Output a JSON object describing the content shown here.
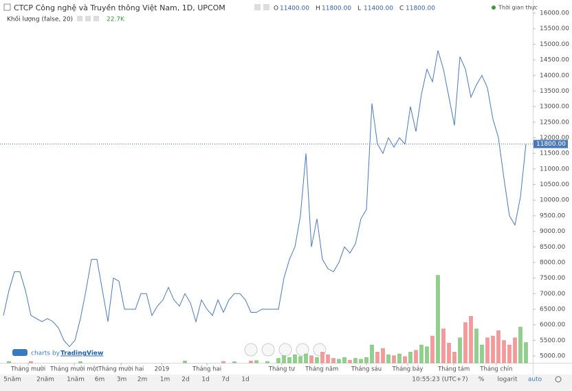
{
  "chart_data": {
    "type": "line",
    "title": "CTCP Công nghệ và Truyền thông Việt Nam, 1D, UPCOM",
    "ohlc": [
      {
        "name": "O",
        "value": 11400,
        "label": "11400.00"
      },
      {
        "name": "H",
        "value": 11800,
        "label": "11800.00"
      },
      {
        "name": "L",
        "value": 11400,
        "label": "11400.00"
      },
      {
        "name": "C",
        "value": 11800,
        "label": "11800.00"
      }
    ],
    "volume_title": "Khối lượng (false, 20)",
    "volume_last": {
      "value": 22700,
      "label": "22.7K"
    },
    "status": "Thời gian thực",
    "last_price": {
      "value": 11800,
      "label": "11800.00"
    },
    "credit": "charts by",
    "brand": "TradingView",
    "color": "#4a78b8",
    "up_color": "#8fd08a",
    "down_color": "#f39a9a",
    "xlim": [
      0,
      95
    ],
    "ylim": [
      4780,
      16310
    ],
    "vlim": [
      0,
      100000
    ],
    "grid": false,
    "values": [
      6300,
      7100,
      7700,
      7700,
      7100,
      6300,
      6200,
      6100,
      6200,
      6100,
      5900,
      5500,
      5300,
      5500,
      6200,
      7100,
      8100,
      8100,
      7100,
      6100,
      7500,
      7400,
      6500,
      6500,
      6500,
      7000,
      7000,
      6300,
      6600,
      6800,
      7200,
      6800,
      6600,
      7000,
      6700,
      6100,
      6800,
      6500,
      6300,
      6800,
      6400,
      6800,
      7000,
      7000,
      6800,
      6400,
      6400,
      6500,
      6500,
      6500,
      6500,
      7500,
      8100,
      8500,
      9500,
      11500,
      8500,
      9400,
      8100,
      7800,
      7700,
      8000,
      8500,
      8300,
      8600,
      9400,
      9700,
      13100,
      11800,
      11500,
      12000,
      11700,
      12000,
      11800,
      13000,
      12200,
      13400,
      14200,
      13800,
      14800,
      14200,
      13300,
      12400,
      14600,
      14200,
      13300,
      13700,
      14000,
      13600,
      12600,
      12000,
      10700,
      9500,
      9200,
      10100,
      11800
    ],
    "volume": [
      0,
      1500,
      0,
      0,
      0,
      1500,
      0,
      0,
      0,
      0,
      0,
      0,
      0,
      0,
      1200,
      0,
      0,
      0,
      0,
      0,
      0,
      0,
      0,
      0,
      0,
      0,
      0,
      0,
      0,
      0,
      0,
      0,
      0,
      2000,
      0,
      0,
      0,
      0,
      0,
      0,
      1500,
      0,
      1200,
      0,
      0,
      2000,
      2500,
      0,
      1500,
      0,
      5000,
      8000,
      6000,
      9000,
      7000,
      10000,
      8000,
      6000,
      12000,
      9000,
      5000,
      4000,
      6000,
      3000,
      5000,
      4000,
      6000,
      20000,
      12000,
      16000,
      9000,
      8000,
      10000,
      7000,
      12000,
      14000,
      20000,
      18000,
      30000,
      98000,
      38000,
      22000,
      12000,
      28000,
      45000,
      52000,
      38000,
      20000,
      28000,
      30000,
      36000,
      25000,
      20000,
      28000,
      40000,
      22700
    ],
    "yticks": [
      {
        "value": 5000,
        "label": "5000.00"
      },
      {
        "value": 5500,
        "label": "5500.00"
      },
      {
        "value": 6000,
        "label": "6000.00"
      },
      {
        "value": 6500,
        "label": "6500.00"
      },
      {
        "value": 7000,
        "label": "7000.00"
      },
      {
        "value": 7500,
        "label": "7500.00"
      },
      {
        "value": 8000,
        "label": "8000.00"
      },
      {
        "value": 8500,
        "label": "8500.00"
      },
      {
        "value": 9000,
        "label": "9000.00"
      },
      {
        "value": 9500,
        "label": "9500.00"
      },
      {
        "value": 10000,
        "label": "10000.00"
      },
      {
        "value": 10500,
        "label": "10500.00"
      },
      {
        "value": 11000,
        "label": "11000.00"
      },
      {
        "value": 11500,
        "label": "11500.00"
      },
      {
        "value": 12000,
        "label": "12000.00"
      },
      {
        "value": 12500,
        "label": "12500.00"
      },
      {
        "value": 13000,
        "label": "13000.00"
      },
      {
        "value": 13500,
        "label": "13500.00"
      },
      {
        "value": 14000,
        "label": "14000.00"
      },
      {
        "value": 14500,
        "label": "14500.00"
      },
      {
        "value": 15000,
        "label": "15000.00"
      },
      {
        "value": 15500,
        "label": "15500.00"
      },
      {
        "value": 16000,
        "label": "16000.00"
      }
    ],
    "xticks": [
      {
        "value": 4.5,
        "label": "Tháng mười"
      },
      {
        "value": 12.9,
        "label": "Tháng mười một"
      },
      {
        "value": 21.4,
        "label": "Tháng mười hai"
      },
      {
        "value": 28.8,
        "label": "2019"
      },
      {
        "value": 37,
        "label": "Tháng hai"
      },
      {
        "value": 50.6,
        "label": "Tháng tư"
      },
      {
        "value": 57.9,
        "label": "Tháng năm"
      },
      {
        "value": 66,
        "label": "Tháng sáu"
      },
      {
        "value": 73.5,
        "label": "Tháng bảy"
      },
      {
        "value": 81.9,
        "label": "Tháng tám"
      },
      {
        "value": 89.6,
        "label": "Tháng chín"
      }
    ],
    "toolbar": [
      "5năm",
      "2năm",
      "1năm",
      "6m",
      "3m",
      "2m",
      "1m",
      "2d",
      "1d",
      "7d",
      "1d"
    ],
    "toolbar_right": [
      "10:55:23 (UTC+7)",
      "%",
      "logarit",
      "auto"
    ]
  }
}
